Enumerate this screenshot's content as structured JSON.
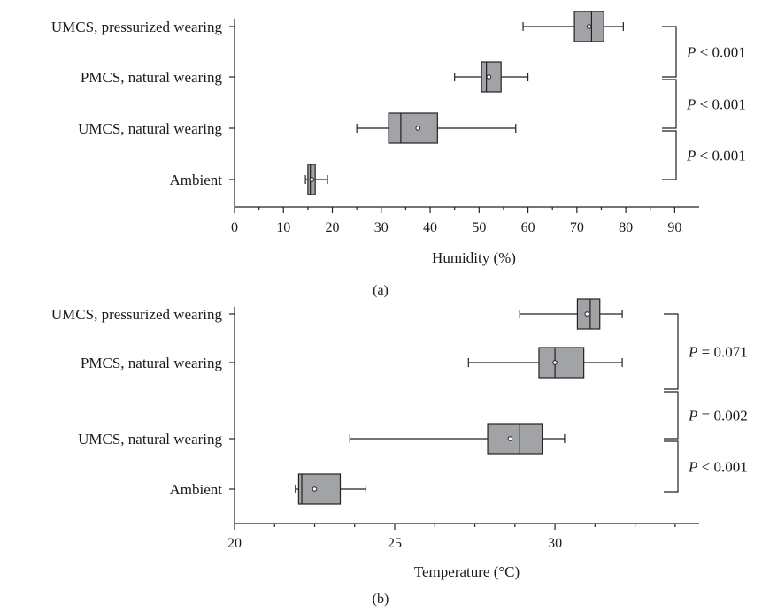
{
  "chart_data": [
    {
      "type": "boxplot",
      "orientation": "horizontal",
      "panel_label": "(a)",
      "xlabel": "Humidity (%)",
      "xlim": [
        0,
        95
      ],
      "ticks": [
        0,
        10,
        20,
        30,
        40,
        50,
        60,
        70,
        80,
        90
      ],
      "tick_labels": [
        "0",
        "10",
        "20",
        "30",
        "40",
        "50",
        "60",
        "70",
        "80",
        "90"
      ],
      "minor_ticks": [
        5,
        15,
        25,
        35,
        45,
        55,
        65,
        75,
        85
      ],
      "categories": [
        "UMCS, pressurized wearing",
        "PMCS, natural wearing",
        "UMCS, natural wearing",
        "Ambient"
      ],
      "boxes": [
        {
          "min": 59,
          "q1": 69.5,
          "median": 73,
          "q3": 75.5,
          "max": 79.5,
          "mean": 72.5
        },
        {
          "min": 45,
          "q1": 50.5,
          "median": 51.5,
          "q3": 54.5,
          "max": 60,
          "mean": 52
        },
        {
          "min": 25,
          "q1": 31.5,
          "median": 34,
          "q3": 41.5,
          "max": 57.5,
          "mean": 37.5
        },
        {
          "min": 14.5,
          "q1": 15,
          "median": 15.5,
          "q3": 16.5,
          "max": 19,
          "mean": 15.8
        }
      ],
      "comparisons": [
        {
          "label": "P",
          "op": "<",
          "value": "0.001"
        },
        {
          "label": "P",
          "op": "<",
          "value": "0.001"
        },
        {
          "label": "P",
          "op": "<",
          "value": "0.001"
        }
      ]
    },
    {
      "type": "boxplot",
      "orientation": "horizontal",
      "panel_label": "(b)",
      "xlabel": "Temperature (°C)",
      "xlim": [
        20,
        34.5
      ],
      "ticks": [
        20,
        25,
        30
      ],
      "tick_labels": [
        "20",
        "25",
        "30"
      ],
      "minor_ticks": [
        21.25,
        22.5,
        23.75,
        26.25,
        27.5,
        28.75,
        31.25,
        32.5,
        33.75
      ],
      "categories": [
        "UMCS, pressurized wearing",
        "PMCS, natural wearing",
        "UMCS, natural wearing",
        "Ambient"
      ],
      "boxes": [
        {
          "min": 28.9,
          "q1": 30.7,
          "median": 31.1,
          "q3": 31.4,
          "max": 32.1,
          "mean": 31
        },
        {
          "min": 27.3,
          "q1": 29.5,
          "median": 30,
          "q3": 30.9,
          "max": 32.1,
          "mean": 30
        },
        {
          "min": 23.6,
          "q1": 27.9,
          "median": 28.9,
          "q3": 29.6,
          "max": 30.3,
          "mean": 28.6
        },
        {
          "min": 21.9,
          "q1": 22,
          "median": 22.1,
          "q3": 23.3,
          "max": 24.1,
          "mean": 22.5
        }
      ],
      "comparisons": [
        {
          "label": "P",
          "op": "=",
          "value": "0.071"
        },
        {
          "label": "P",
          "op": "=",
          "value": "0.002"
        },
        {
          "label": "P",
          "op": "<",
          "value": "0.001"
        }
      ]
    }
  ]
}
